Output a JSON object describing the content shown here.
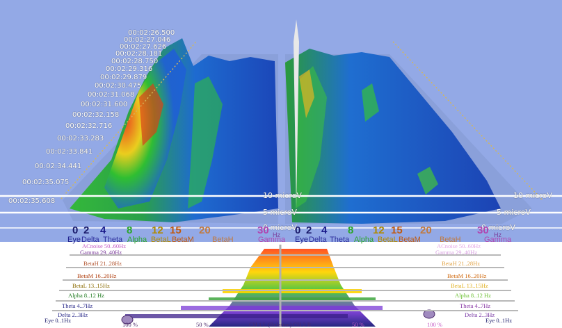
{
  "time_labels": [
    "00:02:26.500",
    "00:02:27.046",
    "00:02:27.626",
    "00:02:28.181",
    "00:02:28.750",
    "00:02:29.316",
    "00:02:29.879",
    "00:02:30.475",
    "00:02:31.068",
    "00:02:31.600",
    "00:02:32.158",
    "00:02:32.716",
    "00:02:33.283",
    "00:02:33.841",
    "00:02:34.441",
    "00:02:35.075",
    "00:02:35.608"
  ],
  "microv_labels": {
    "left": [
      "10 microV",
      "5 microV",
      "0 microV"
    ],
    "right": [
      "10 microV",
      "5 microV",
      "0 microV"
    ]
  },
  "freq_axis": {
    "left_numbers": [
      "0",
      "2",
      "4",
      "8",
      "12",
      "15",
      "20",
      "30"
    ],
    "right_numbers": [
      "0",
      "2",
      "4",
      "8",
      "12",
      "15",
      "20",
      "30"
    ],
    "hz_unit": "Hz",
    "bands": [
      "Eye",
      "Delta",
      "Theta",
      "Alpha",
      "BetaL",
      "BetaM",
      "BetaH",
      "Gamma"
    ]
  },
  "band_rows": {
    "left": [
      "ACnoise 50..60Hz",
      "Gamma 29..40Hz",
      "BetaH 21..28Hz",
      "BetaM 16..20Hz",
      "BetaL 13..15Hz",
      "Alpha 8..12 Hz",
      "Theta 4..7Hz",
      "Delta 2..3Hz",
      "Eye 0..1Hz"
    ],
    "right": [
      "ACnoise 50..60Hz",
      "Gamma 29..40Hz",
      "BetaH 21..28Hz",
      "BetaM 16..20Hz",
      "BetaL 13..15Hz",
      "Alpha 8..12 Hz",
      "Theta 4..7Hz",
      "Delta 2..3Hz",
      "Eye 0..1Hz"
    ]
  },
  "bottom_axis": {
    "pct_100": "100 %",
    "pct_50": "50 %",
    "channel_label": "CH 1 L  (Relative)  CH 2 R",
    "right_pct_50": "50 %",
    "right_pct_100": "100 %"
  },
  "colors": {
    "background": "#93a9e6",
    "eye": "#1a1a8a",
    "delta": "#2a2a9a",
    "theta": "#2a2a9a",
    "alpha": "#2aa62a",
    "betal": "#b08a00",
    "betam": "#c05a10",
    "betah": "#c07a40",
    "gamma": "#b045b0"
  }
}
